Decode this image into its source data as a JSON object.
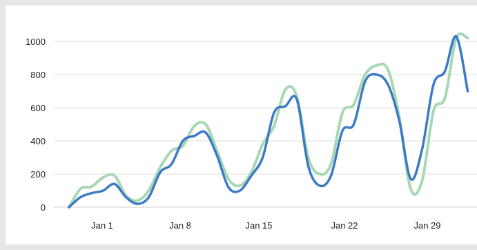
{
  "colors": {
    "series_green": "#a7d8b4",
    "series_blue": "#3c7bc4",
    "grid": "#dedede",
    "background_outer": "#e6e6e6",
    "background_inner": "#ffffff"
  },
  "chart_data": {
    "type": "line",
    "title": "",
    "xlabel": "",
    "ylabel": "",
    "ylim": [
      0,
      1050
    ],
    "xlim": [
      "2023-12-28",
      "2024-02-01"
    ],
    "y_ticks": [
      "0",
      "200",
      "400",
      "600",
      "800",
      "1000"
    ],
    "x_ticks": [
      "Jan 1",
      "Jan 8",
      "Jan 15",
      "Jan 22",
      "Jan 29"
    ],
    "x_tick_dates": [
      "2024-01-01",
      "2024-01-08",
      "2024-01-15",
      "2024-01-22",
      "2024-01-29"
    ],
    "grid": true,
    "legend": "none",
    "series": [
      {
        "color": "#a7d8b4",
        "points": [
          [
            "2023-12-28",
            0
          ],
          [
            "2023-12-29",
            110
          ],
          [
            "2023-12-30",
            125
          ],
          [
            "2023-12-31",
            180
          ],
          [
            "2024-01-01",
            190
          ],
          [
            "2024-01-02",
            70
          ],
          [
            "2024-01-03",
            40
          ],
          [
            "2024-01-04",
            100
          ],
          [
            "2024-01-05",
            240
          ],
          [
            "2024-01-06",
            340
          ],
          [
            "2024-01-07",
            370
          ],
          [
            "2024-01-08",
            490
          ],
          [
            "2024-01-09",
            500
          ],
          [
            "2024-01-10",
            340
          ],
          [
            "2024-01-11",
            170
          ],
          [
            "2024-01-12",
            130
          ],
          [
            "2024-01-13",
            210
          ],
          [
            "2024-01-14",
            380
          ],
          [
            "2024-01-15",
            490
          ],
          [
            "2024-01-16",
            710
          ],
          [
            "2024-01-17",
            670
          ],
          [
            "2024-01-18",
            300
          ],
          [
            "2024-01-19",
            200
          ],
          [
            "2024-01-20",
            260
          ],
          [
            "2024-01-21",
            570
          ],
          [
            "2024-01-22",
            620
          ],
          [
            "2024-01-23",
            800
          ],
          [
            "2024-01-24",
            855
          ],
          [
            "2024-01-25",
            830
          ],
          [
            "2024-01-26",
            540
          ],
          [
            "2024-01-27",
            110
          ],
          [
            "2024-01-28",
            160
          ],
          [
            "2024-01-29",
            580
          ],
          [
            "2024-01-30",
            660
          ],
          [
            "2024-01-31",
            1020
          ],
          [
            "2024-02-01",
            1020
          ]
        ]
      },
      {
        "color": "#3c7bc4",
        "points": [
          [
            "2023-12-28",
            0
          ],
          [
            "2023-12-29",
            60
          ],
          [
            "2023-12-30",
            85
          ],
          [
            "2023-12-31",
            100
          ],
          [
            "2024-01-01",
            140
          ],
          [
            "2024-01-02",
            60
          ],
          [
            "2024-01-03",
            20
          ],
          [
            "2024-01-04",
            60
          ],
          [
            "2024-01-05",
            210
          ],
          [
            "2024-01-06",
            260
          ],
          [
            "2024-01-07",
            400
          ],
          [
            "2024-01-08",
            430
          ],
          [
            "2024-01-09",
            450
          ],
          [
            "2024-01-10",
            310
          ],
          [
            "2024-01-11",
            120
          ],
          [
            "2024-01-12",
            100
          ],
          [
            "2024-01-13",
            190
          ],
          [
            "2024-01-14",
            300
          ],
          [
            "2024-01-15",
            570
          ],
          [
            "2024-01-16",
            610
          ],
          [
            "2024-01-17",
            650
          ],
          [
            "2024-01-18",
            250
          ],
          [
            "2024-01-19",
            130
          ],
          [
            "2024-01-20",
            190
          ],
          [
            "2024-01-21",
            460
          ],
          [
            "2024-01-22",
            500
          ],
          [
            "2024-01-23",
            760
          ],
          [
            "2024-01-24",
            800
          ],
          [
            "2024-01-25",
            740
          ],
          [
            "2024-01-26",
            520
          ],
          [
            "2024-01-27",
            170
          ],
          [
            "2024-01-28",
            350
          ],
          [
            "2024-01-29",
            740
          ],
          [
            "2024-01-30",
            820
          ],
          [
            "2024-01-31",
            1030
          ],
          [
            "2024-02-01",
            700
          ]
        ]
      }
    ]
  }
}
